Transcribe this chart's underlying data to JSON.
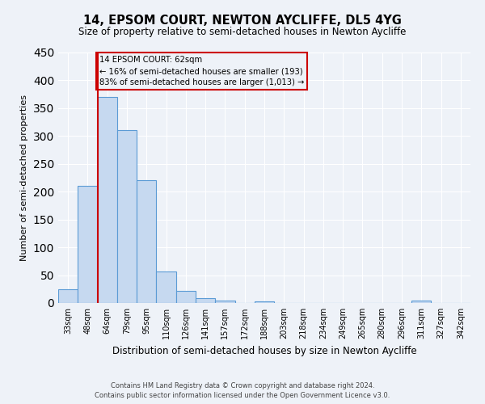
{
  "title": "14, EPSOM COURT, NEWTON AYCLIFFE, DL5 4YG",
  "subtitle": "Size of property relative to semi-detached houses in Newton Aycliffe",
  "xlabel": "Distribution of semi-detached houses by size in Newton Aycliffe",
  "ylabel": "Number of semi-detached properties",
  "bin_labels": [
    "33sqm",
    "48sqm",
    "64sqm",
    "79sqm",
    "95sqm",
    "110sqm",
    "126sqm",
    "141sqm",
    "157sqm",
    "172sqm",
    "188sqm",
    "203sqm",
    "218sqm",
    "234sqm",
    "249sqm",
    "265sqm",
    "280sqm",
    "296sqm",
    "311sqm",
    "327sqm",
    "342sqm"
  ],
  "bar_heights": [
    25,
    210,
    370,
    310,
    220,
    57,
    22,
    8,
    5,
    0,
    3,
    0,
    0,
    0,
    0,
    0,
    0,
    0,
    4,
    0,
    0
  ],
  "bar_color": "#c6d9f0",
  "bar_edge_color": "#5b9bd5",
  "annotation_line1": "14 EPSOM COURT: 62sqm",
  "annotation_line2": "← 16% of semi-detached houses are smaller (193)",
  "annotation_line3": "83% of semi-detached houses are larger (1,013) →",
  "box_color": "#cc0000",
  "marker_color": "#cc0000",
  "ylim": [
    0,
    450
  ],
  "yticks": [
    0,
    50,
    100,
    150,
    200,
    250,
    300,
    350,
    400,
    450
  ],
  "footnote1": "Contains HM Land Registry data © Crown copyright and database right 2024.",
  "footnote2": "Contains public sector information licensed under the Open Government Licence v3.0.",
  "bg_color": "#eef2f8",
  "grid_color": "#ffffff"
}
